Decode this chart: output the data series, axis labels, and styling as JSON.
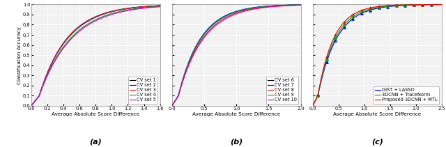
{
  "subplot_a": {
    "title": "(a)",
    "xlabel": "Average Absolute Score Difference",
    "ylabel": "Classification Accuracy",
    "xlim": [
      0,
      1.6
    ],
    "ylim": [
      0,
      1.0
    ],
    "xticks": [
      0,
      0.2,
      0.4,
      0.6,
      0.8,
      1.0,
      1.2,
      1.4,
      1.6
    ],
    "yticks": [
      0,
      0.1,
      0.2,
      0.3,
      0.4,
      0.5,
      0.6,
      0.7,
      0.8,
      0.9,
      1.0
    ],
    "curves": [
      {
        "label": "CV set 1",
        "color": "#000000",
        "a": 0.82,
        "b": 0.28
      },
      {
        "label": "CV set 2",
        "color": "#0000EE",
        "a": 0.8,
        "b": 0.3
      },
      {
        "label": "CV set 3",
        "color": "#EE2222",
        "a": 0.81,
        "b": 0.27
      },
      {
        "label": "CV set 4",
        "color": "#00AA00",
        "a": 0.73,
        "b": 0.38
      },
      {
        "label": "CV set 5",
        "color": "#CC00CC",
        "a": 0.7,
        "b": 0.4
      }
    ]
  },
  "subplot_b": {
    "title": "(b)",
    "xlabel": "Average Absolute Score Difference",
    "ylabel": "Classification Accuracy",
    "xlim": [
      0,
      2.0
    ],
    "ylim": [
      0,
      1.0
    ],
    "xticks": [
      0,
      0.5,
      1.0,
      1.5,
      2.0
    ],
    "yticks": [
      0,
      0.1,
      0.2,
      0.3,
      0.4,
      0.5,
      0.6,
      0.7,
      0.8,
      0.9,
      1.0
    ],
    "curves": [
      {
        "label": "CV set 6",
        "color": "#000000",
        "a": 0.8,
        "b": 0.38
      },
      {
        "label": "CV set 7",
        "color": "#0000EE",
        "a": 0.82,
        "b": 0.35
      },
      {
        "label": "CV set 8",
        "color": "#EE2222",
        "a": 0.72,
        "b": 0.48
      },
      {
        "label": "CV set 9",
        "color": "#00AA00",
        "a": 0.8,
        "b": 0.36
      },
      {
        "label": "CV set 10",
        "color": "#CC00CC",
        "a": 0.75,
        "b": 0.44
      }
    ]
  },
  "subplot_c": {
    "title": "(c)",
    "xlabel": "Average Absolute Score Difference",
    "ylabel": "Classification Accuracy",
    "xlim": [
      0,
      2.5
    ],
    "ylim": [
      0,
      1.0
    ],
    "xticks": [
      0,
      0.5,
      1.0,
      1.5,
      2.0,
      2.5
    ],
    "yticks": [
      0,
      0.1,
      0.2,
      0.3,
      0.4,
      0.5,
      0.6,
      0.7,
      0.8,
      0.9,
      1.0
    ],
    "curves": [
      {
        "label": "GIST + LASSO",
        "color": "#0000EE",
        "a": 0.78,
        "b": 0.5,
        "marker": "^",
        "ms": 2.5
      },
      {
        "label": "3DCNN + TraceNorm",
        "color": "#00AA00",
        "a": 0.84,
        "b": 0.4,
        "marker": "o",
        "ms": 2.5
      },
      {
        "label": "Proposed 3DCNN + MTL",
        "color": "#EE0000",
        "a": 0.92,
        "b": 0.22,
        "marker": "+",
        "ms": 3.5
      }
    ]
  },
  "bg_color": "#f2f2f2",
  "grid_color": "#ffffff",
  "fontsize_label": 5.2,
  "fontsize_tick": 4.8,
  "fontsize_title": 8,
  "fontsize_legend": 4.8,
  "linewidth": 0.85
}
